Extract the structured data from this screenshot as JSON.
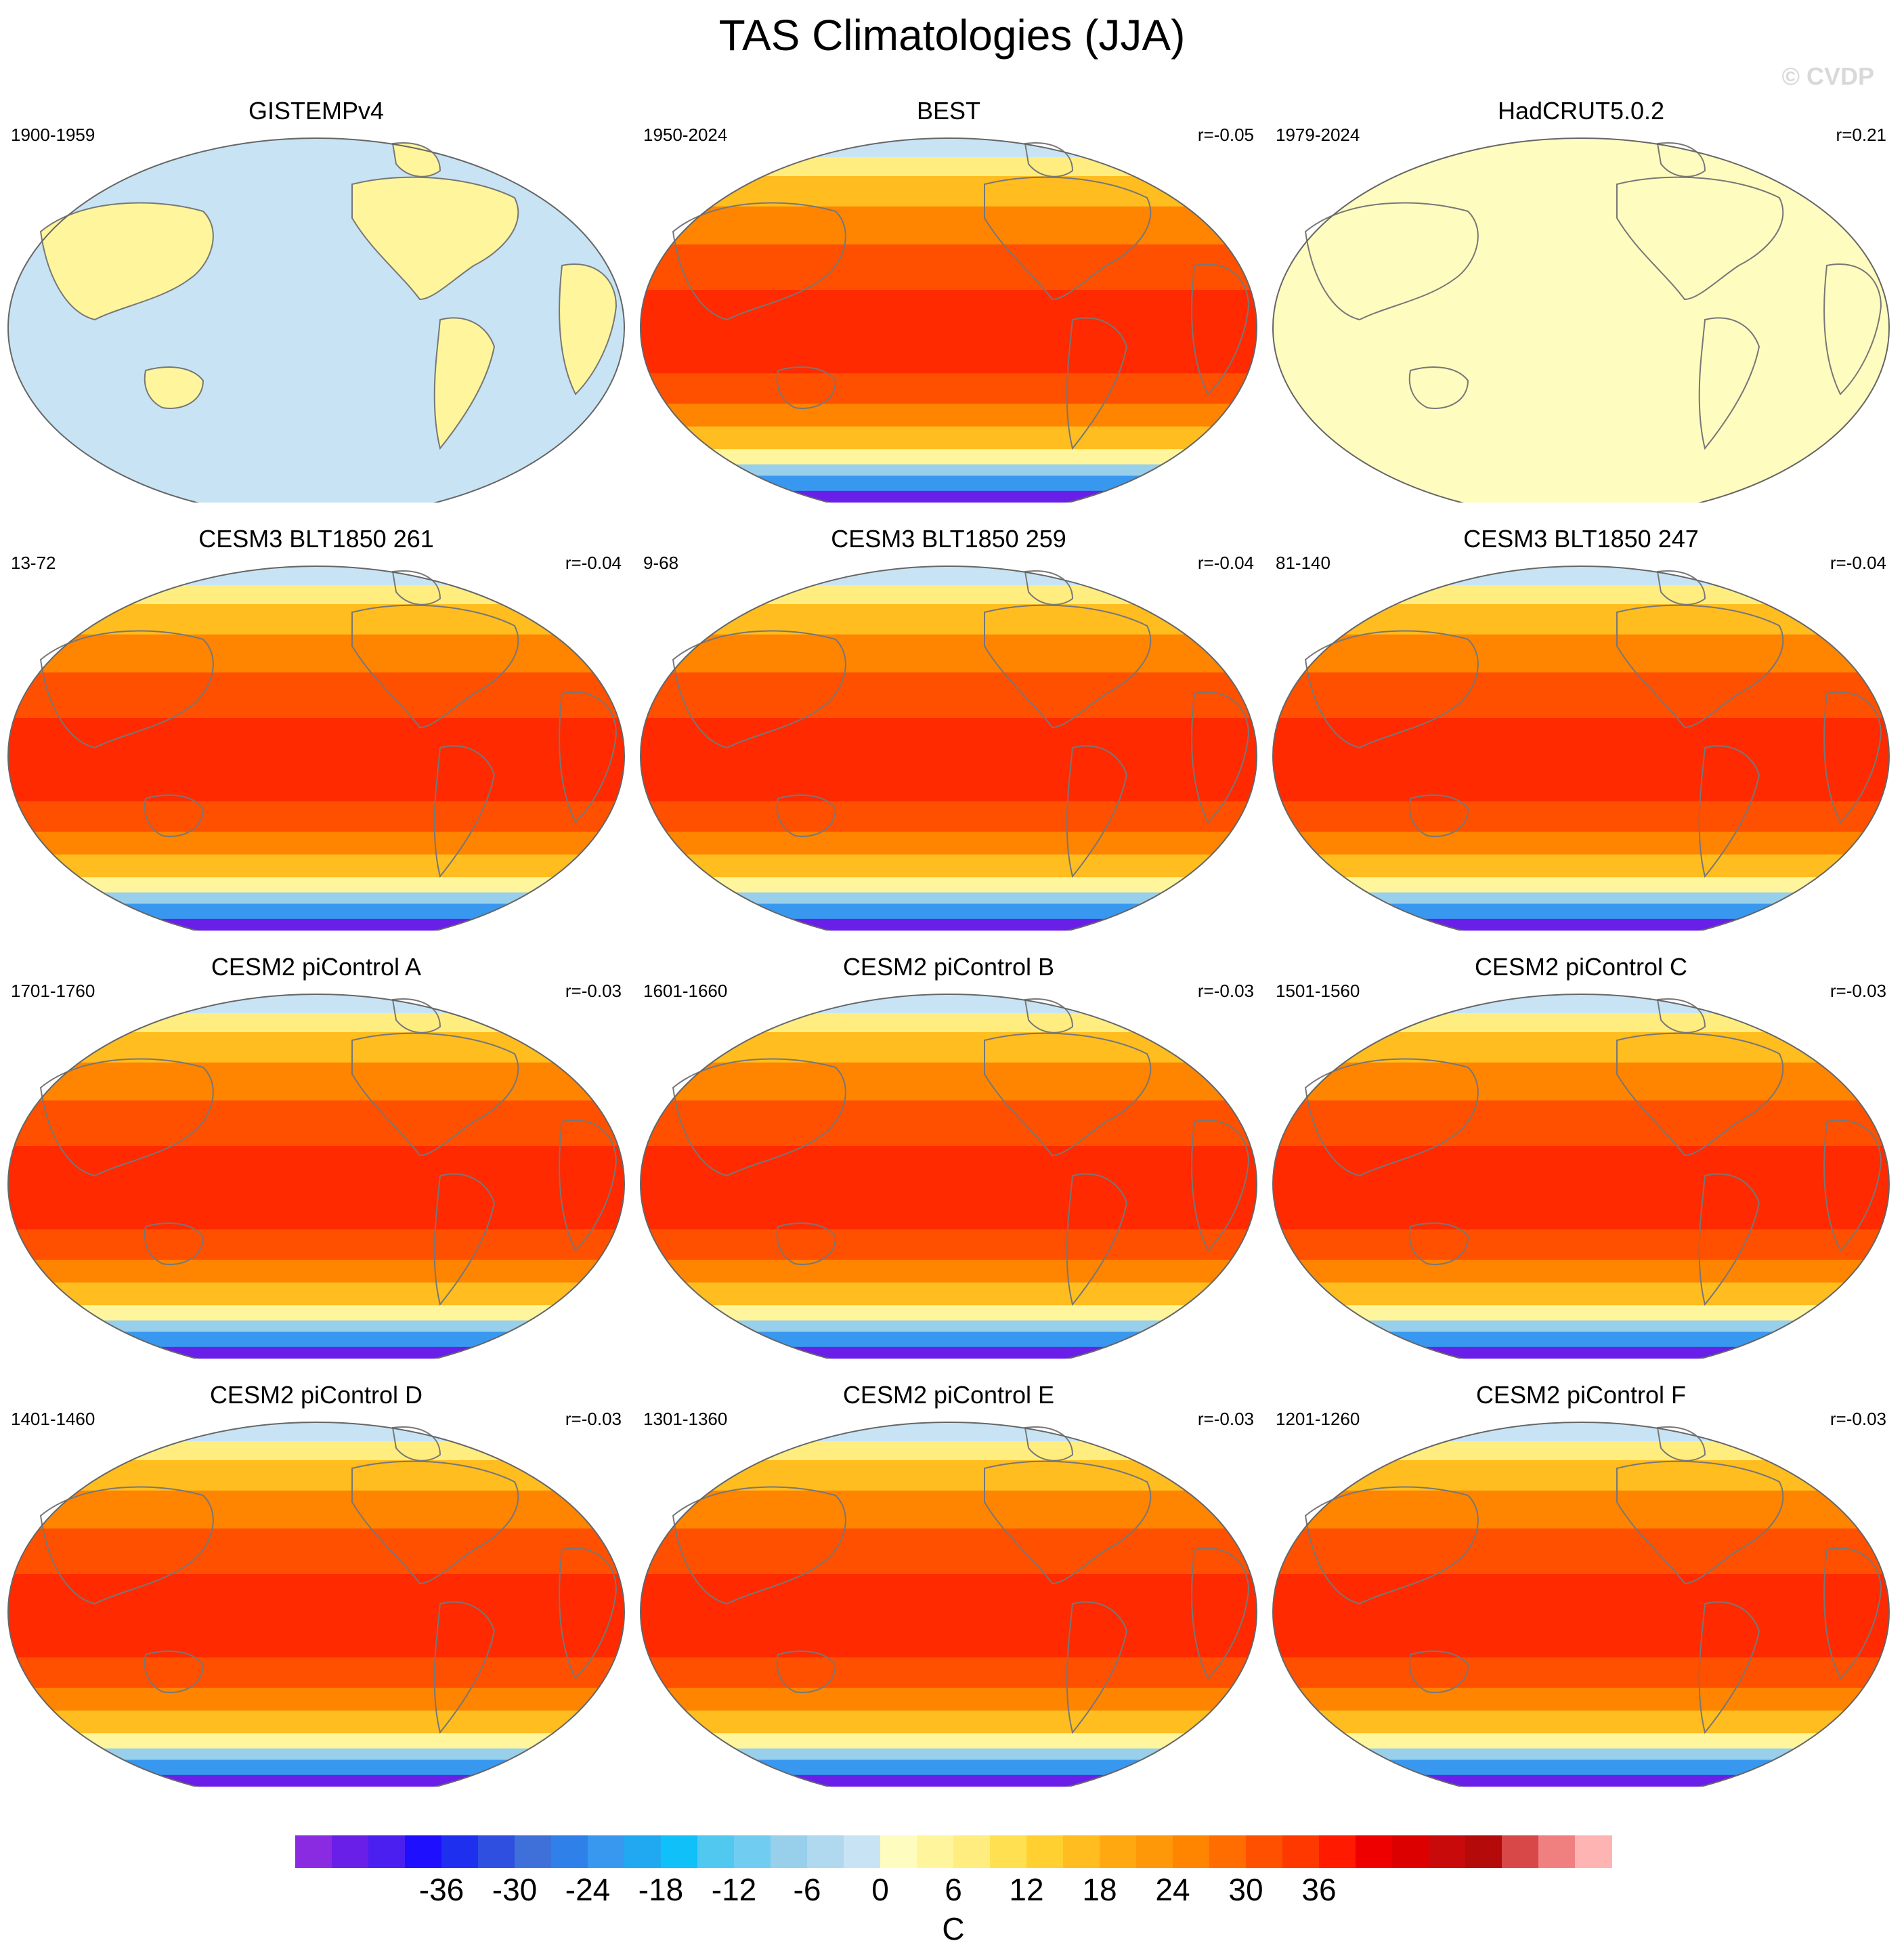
{
  "figure": {
    "title": "TAS Climatologies (JJA)",
    "watermark": "© CVDP"
  },
  "panels": [
    {
      "name": "GISTEMPv4",
      "period": "1900-1959",
      "r": "",
      "field_type": "sparse-obs"
    },
    {
      "name": "BEST",
      "period": "1950-2024",
      "r": "r=-0.05",
      "field_type": "full"
    },
    {
      "name": "HadCRUT5.0.2",
      "period": "1979-2024",
      "r": "r=0.21",
      "field_type": "near-zero"
    },
    {
      "name": "CESM3 BLT1850 261",
      "period": "13-72",
      "r": "r=-0.04",
      "field_type": "full"
    },
    {
      "name": "CESM3 BLT1850 259",
      "period": "9-68",
      "r": "r=-0.04",
      "field_type": "full"
    },
    {
      "name": "CESM3 BLT1850 247",
      "period": "81-140",
      "r": "r=-0.04",
      "field_type": "full"
    },
    {
      "name": "CESM2 piControl A",
      "period": "1701-1760",
      "r": "r=-0.03",
      "field_type": "full"
    },
    {
      "name": "CESM2 piControl B",
      "period": "1601-1660",
      "r": "r=-0.03",
      "field_type": "full"
    },
    {
      "name": "CESM2 piControl C",
      "period": "1501-1560",
      "r": "r=-0.03",
      "field_type": "full"
    },
    {
      "name": "CESM2 piControl D",
      "period": "1401-1460",
      "r": "r=-0.03",
      "field_type": "full"
    },
    {
      "name": "CESM2 piControl E",
      "period": "1301-1360",
      "r": "r=-0.03",
      "field_type": "full"
    },
    {
      "name": "CESM2 piControl F",
      "period": "1201-1260",
      "r": "r=-0.03",
      "field_type": "full"
    }
  ],
  "colorbar": {
    "unit": "C",
    "tick_labels": [
      "-36",
      "-30",
      "-24",
      "-18",
      "-12",
      "-6",
      "0",
      "6",
      "12",
      "18",
      "24",
      "30",
      "36"
    ],
    "colors": [
      "#8a2be2",
      "#6a1fe8",
      "#4b1ff0",
      "#1e10ff",
      "#1f2fef",
      "#2f4fe0",
      "#3f6fd8",
      "#2f80e8",
      "#3898f0",
      "#20a8f0",
      "#10c0f8",
      "#50c8f0",
      "#70ccf0",
      "#98d0ec",
      "#b0d8ee",
      "#c8e4f4",
      "#fffcc0",
      "#fff59c",
      "#ffed80",
      "#ffe050",
      "#ffd030",
      "#ffbd20",
      "#ffa810",
      "#ff9808",
      "#ff8400",
      "#ff6c00",
      "#ff5000",
      "#ff3800",
      "#ff1a00",
      "#ee0000",
      "#dd0000",
      "#c80a0a",
      "#b40a0a",
      "#d84848",
      "#f08080",
      "#ffb4b4"
    ]
  }
}
